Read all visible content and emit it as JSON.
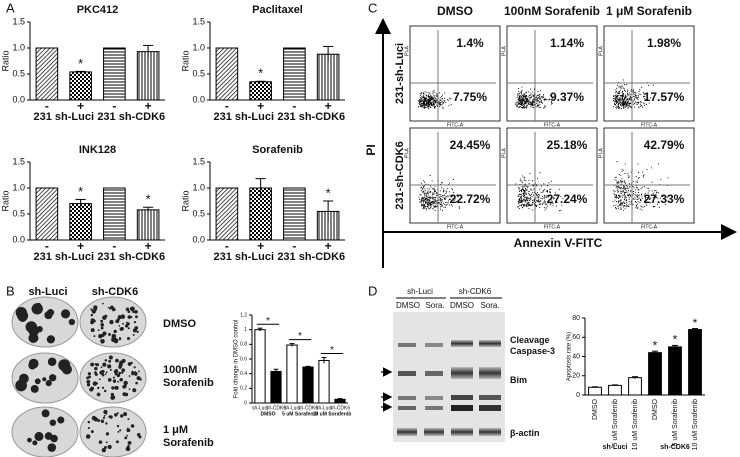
{
  "panel_labels": [
    "A",
    "B",
    "C",
    "D"
  ],
  "chart_data": [
    {
      "type": "bar",
      "title": "PKC412",
      "y_label": "Ratio",
      "categories": [
        "-",
        "+",
        "-",
        "+"
      ],
      "groups": [
        "231 sh-Luci",
        "231 sh-CDK6"
      ],
      "values": [
        1,
        0.54,
        1,
        0.93
      ],
      "errors": [
        null,
        0.01,
        null,
        0.12
      ],
      "significance": [
        null,
        "*",
        null,
        null
      ],
      "ylim": [
        0,
        1.5
      ],
      "yticks": [
        {
          "value": 0,
          "label": "0.0"
        },
        0.5,
        {
          "value": 1,
          "label": "1.0"
        },
        1.5
      ]
    },
    {
      "type": "bar",
      "title": "Paclitaxel",
      "y_label": "Ratio",
      "categories": [
        "-",
        "+",
        "-",
        "+"
      ],
      "groups": [
        "231 sh-Luci",
        "231 sh-CDK6"
      ],
      "values": [
        1,
        0.35,
        1,
        0.88
      ],
      "errors": [
        null,
        0.01,
        null,
        0.15
      ],
      "significance": [
        null,
        "*",
        null,
        null
      ],
      "ylim": [
        0,
        1.5
      ],
      "yticks": [
        {
          "value": 0,
          "label": "0.0"
        },
        0.5,
        {
          "value": 1,
          "label": "1.0"
        },
        1.5
      ]
    },
    {
      "type": "bar",
      "title": "INK128",
      "y_label": "Ratio",
      "categories": [
        "-",
        "+",
        "-",
        "+"
      ],
      "groups": [
        "231 sh-Luci",
        "231 sh-CDK6"
      ],
      "values": [
        1,
        0.7,
        1,
        0.58
      ],
      "errors": [
        null,
        0.08,
        null,
        0.05
      ],
      "significance": [
        null,
        "*",
        null,
        "*"
      ],
      "ylim": [
        0,
        1.5
      ],
      "yticks": [
        {
          "value": 0,
          "label": "0.0"
        },
        0.5,
        {
          "value": 1,
          "label": "1.0"
        },
        1.5
      ]
    },
    {
      "type": "bar",
      "title": "Sorafenib",
      "y_label": "Ratio",
      "categories": [
        "-",
        "+",
        "-",
        "+"
      ],
      "groups": [
        "231 sh-Luci",
        "231 sh-CDK6"
      ],
      "values": [
        1,
        1,
        1,
        0.55
      ],
      "errors": [
        null,
        0.18,
        null,
        0.2
      ],
      "significance": [
        null,
        null,
        null,
        "*"
      ],
      "ylim": [
        0,
        1.5
      ],
      "yticks": [
        {
          "value": 0,
          "label": "0.0"
        },
        0.5,
        {
          "value": 1,
          "label": "1.0"
        },
        1.5
      ]
    },
    {
      "type": "bar",
      "y_label": "Fold change in DMSO control",
      "categories": [
        "sh-Luci",
        "sh-CDK6",
        "sh-Luci",
        "sh-CDK6",
        "sh-Luci",
        "sh-CDK6"
      ],
      "groups": [
        "DMSO",
        "5 uM Sorafenib",
        "10 uM Sorafenib"
      ],
      "values": [
        1,
        0.43,
        0.79,
        0.49,
        0.58,
        0.05
      ],
      "errors": [
        0.02,
        0.03,
        0.02,
        0.01,
        0.04,
        0.01
      ],
      "colors": [
        "#ffffff",
        "#000000",
        "#ffffff",
        "#000000",
        "#ffffff",
        "#000000"
      ],
      "significance": [
        "*",
        "*",
        "*"
      ],
      "ylim": [
        0,
        1.2
      ],
      "yticks": [
        0,
        0.2,
        0.4,
        0.6,
        0.8,
        1,
        1.2
      ]
    },
    {
      "type": "bar",
      "y_label": "Apoptosis rate (%)",
      "categories": [
        "DMSO",
        "5 uM Sorafenib",
        "10 uM Sorafenib",
        "DMSO",
        "5 uM Sorafenib",
        "10 uM Sorafenib"
      ],
      "groups": [
        "sh-Luci",
        "sh-CDK6"
      ],
      "values": [
        8,
        10,
        18,
        44,
        50,
        68
      ],
      "errors": [
        0.5,
        0.5,
        1,
        1.5,
        1.5,
        1
      ],
      "colors": [
        "#ffffff",
        "#ffffff",
        "#ffffff",
        "#000000",
        "#000000",
        "#000000"
      ],
      "significance": [
        null,
        null,
        null,
        "*",
        "*",
        "*"
      ],
      "ylim": [
        0,
        80
      ],
      "yticks": [
        0,
        20,
        40,
        60,
        80
      ]
    }
  ],
  "colony": {
    "columns": [
      "sh-Luci",
      "sh-CDK6"
    ],
    "rows": [
      "DMSO",
      "100nM Sorafenib",
      "1 μM Sorafenib"
    ]
  },
  "flow": {
    "columns": [
      "DMSO",
      "100nM Sorafenib",
      "1 μM Sorafenib"
    ],
    "rows": [
      "231-sh-Luci",
      "231-sh-CDK6"
    ],
    "upper": [
      [
        "1.4%",
        "1.14%",
        "1.98%"
      ],
      [
        "24.45%",
        "25.18%",
        "42.79%"
      ]
    ],
    "lower": [
      [
        "7.75%",
        "9.37%",
        "17.57%"
      ],
      [
        "22.72%",
        "27.24%",
        "27.33%"
      ]
    ],
    "y_label": "PI",
    "x_label": "Annexin V-FITC",
    "plot_x_label": "FITC-A",
    "plot_y_label": "PI-A"
  },
  "blot": {
    "groups": [
      "sh-Luci",
      "sh-CDK6"
    ],
    "lanes": [
      "DMSO",
      "Sora.",
      "DMSO",
      "Sora."
    ],
    "bands": [
      "Cleavage Caspase-3",
      "Bim",
      "β-actin"
    ]
  }
}
